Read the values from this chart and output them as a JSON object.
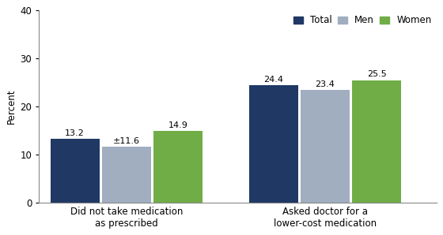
{
  "categories": [
    "Did not take medication\nas prescribed",
    "Asked doctor for a\nlower-cost medication"
  ],
  "series": {
    "Total": [
      13.2,
      24.4
    ],
    "Men": [
      11.6,
      23.4
    ],
    "Women": [
      14.9,
      25.5
    ]
  },
  "annotations": [
    {
      "group": 0,
      "bar": 0,
      "text": "13.2"
    },
    {
      "group": 0,
      "bar": 1,
      "text": "±11.6"
    },
    {
      "group": 0,
      "bar": 2,
      "text": "14.9"
    },
    {
      "group": 1,
      "bar": 0,
      "text": "24.4"
    },
    {
      "group": 1,
      "bar": 1,
      "text": "23.4"
    },
    {
      "group": 1,
      "bar": 2,
      "text": "25.5"
    }
  ],
  "colors": {
    "Total": "#1f3864",
    "Men": "#a0aec0",
    "Women": "#70ad47"
  },
  "ylabel": "Percent",
  "ylim": [
    0,
    40
  ],
  "yticks": [
    0,
    10,
    20,
    30,
    40
  ],
  "bar_width": 0.13,
  "legend_labels": [
    "Total",
    "Men",
    "Women"
  ],
  "background_color": "#ffffff",
  "label_fontsize": 8,
  "axis_fontsize": 8.5,
  "legend_fontsize": 8.5,
  "group_centers": [
    0.22,
    0.72
  ]
}
